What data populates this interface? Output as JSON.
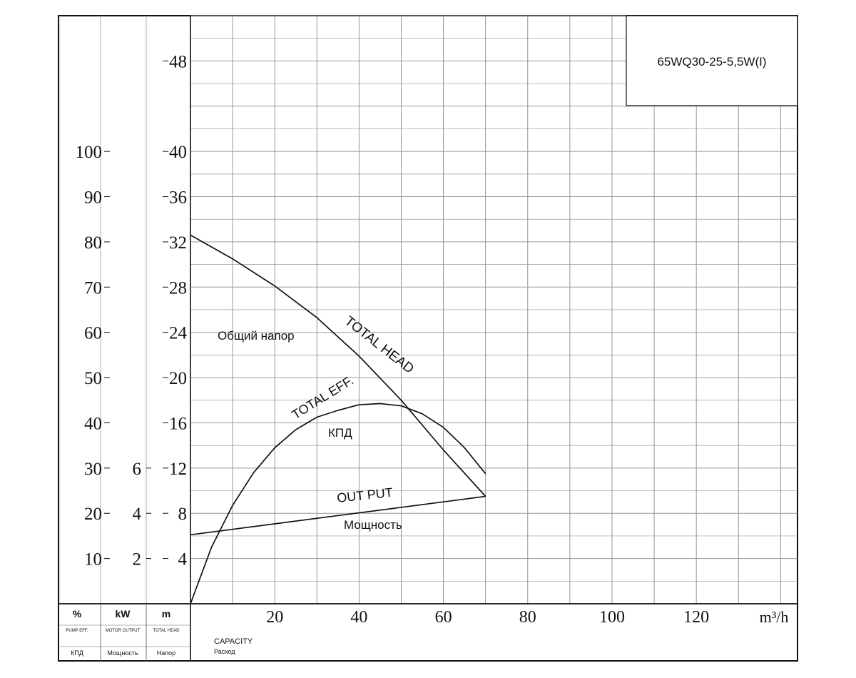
{
  "chart_data": {
    "type": "line",
    "model": "65WQ30-25-5,5W(I)",
    "x_ticks": [
      "20",
      "40",
      "60",
      "80",
      "100",
      "120"
    ],
    "x_unit": "m³/h",
    "xlim": [
      0,
      144
    ],
    "head_axis": {
      "unit": "m",
      "label_en": "TOTAL HEAD",
      "label_ru": "Напор",
      "ticks": [
        "4",
        "8",
        "12",
        "16",
        "20",
        "24",
        "28",
        "32",
        "36",
        "40",
        "48"
      ],
      "lim": [
        0,
        52
      ]
    },
    "eff_axis": {
      "unit": "%",
      "label_en": "PUMP EFF.",
      "label_ru": "КПД",
      "ticks": [
        "10",
        "20",
        "30",
        "40",
        "50",
        "60",
        "70",
        "80",
        "90",
        "100"
      ]
    },
    "power_axis": {
      "unit": "kW",
      "label_en": "MOTOR OUTPUT",
      "label_ru": "Мощность",
      "ticks": [
        "2",
        "4",
        "6"
      ]
    },
    "capacity_label_en": "CAPACITY",
    "capacity_label_ru": "Расход",
    "series": [
      {
        "name": "TOTAL HEAD",
        "name_ru": "Общий напор",
        "axis": "head",
        "x": [
          0,
          10,
          20,
          30,
          40,
          50,
          60,
          70
        ],
        "y": [
          32.6,
          30.5,
          28.1,
          25.3,
          21.9,
          18.0,
          13.6,
          9.5
        ]
      },
      {
        "name": "TOTAL EFF.",
        "name_ru": "КПД",
        "axis": "head",
        "x": [
          0,
          5,
          10,
          15,
          20,
          25,
          30,
          35,
          40,
          45,
          50,
          55,
          60,
          65,
          70
        ],
        "y": [
          0,
          5.0,
          8.7,
          11.6,
          13.8,
          15.4,
          16.5,
          17.1,
          17.6,
          17.7,
          17.5,
          16.8,
          15.6,
          13.8,
          11.5
        ]
      },
      {
        "name": "OUT PUT",
        "name_ru": "Мощность",
        "axis": "head",
        "x": [
          0,
          70
        ],
        "y": [
          6.1,
          9.5
        ]
      }
    ],
    "grid": true
  }
}
